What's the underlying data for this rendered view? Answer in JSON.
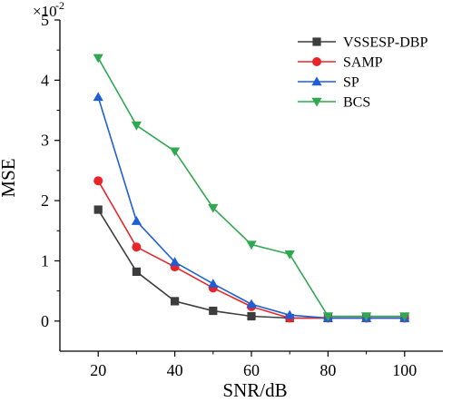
{
  "chart_data": {
    "type": "line",
    "xlabel": "SNR/dB",
    "ylabel": "MSE",
    "multiplier_base": "×10",
    "multiplier_exponent": "-2",
    "x": [
      20,
      30,
      40,
      50,
      60,
      70,
      80,
      90,
      100
    ],
    "xlim": [
      10,
      110
    ],
    "ylim": [
      -0.5,
      5
    ],
    "xticks": [
      20,
      40,
      60,
      80,
      100
    ],
    "yticks": [
      0,
      1,
      2,
      3,
      4,
      5
    ],
    "grid": false,
    "legend_position": "top-right",
    "series": [
      {
        "name": "VSSESP-DBP",
        "color": "#3d3d3d",
        "marker": "square",
        "values": [
          1.85,
          0.82,
          0.33,
          0.17,
          0.08,
          0.05,
          0.05,
          0.05,
          0.05
        ]
      },
      {
        "name": "SAMP",
        "color": "#e8262a",
        "marker": "circle",
        "values": [
          2.33,
          1.23,
          0.9,
          0.55,
          0.24,
          0.05,
          0.05,
          0.05,
          0.05
        ]
      },
      {
        "name": "SP",
        "color": "#1f5fd6",
        "marker": "triangle-up",
        "values": [
          3.72,
          1.66,
          0.98,
          0.62,
          0.28,
          0.1,
          0.05,
          0.05,
          0.05
        ]
      },
      {
        "name": "BCS",
        "color": "#2fa84f",
        "marker": "triangle-down",
        "values": [
          4.37,
          3.25,
          2.82,
          1.88,
          1.27,
          1.11,
          0.08,
          0.08,
          0.08
        ]
      }
    ]
  }
}
